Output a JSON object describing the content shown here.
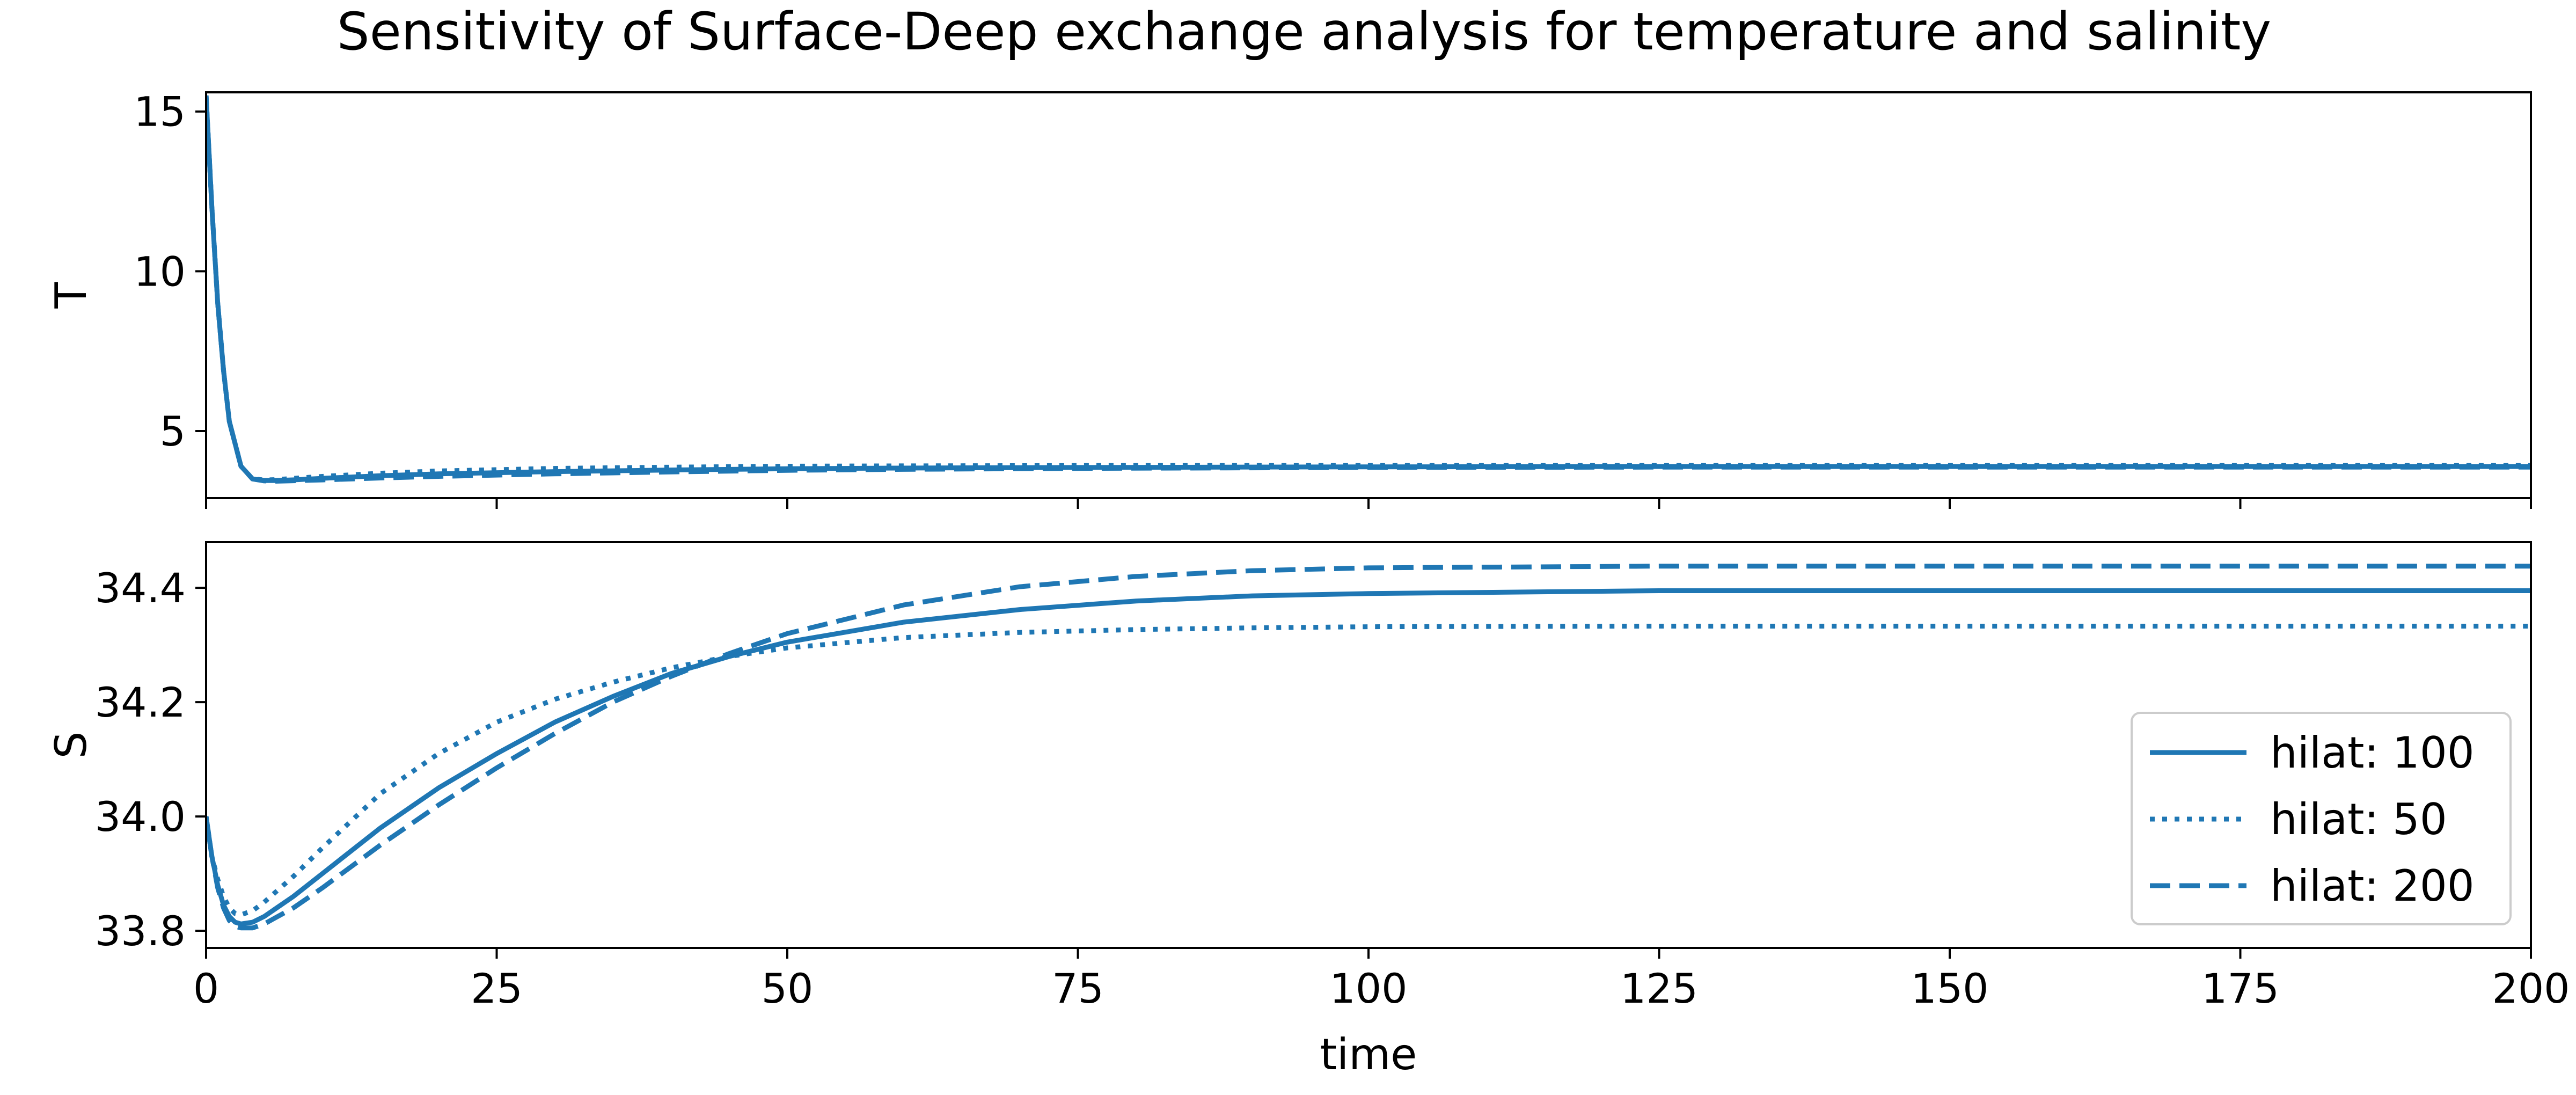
{
  "title": "Sensitivity of Surface-Deep exchange analysis for temperature and salinity",
  "colors": {
    "series": "#1f77b4",
    "axes": "#000000",
    "legend_border": "#cccccc"
  },
  "chart_data": [
    {
      "type": "line",
      "panel": "top",
      "title": "Sensitivity of Surface-Deep exchange analysis for temperature and salinity",
      "xlabel": "",
      "ylabel": "T",
      "xlim": [
        0,
        200
      ],
      "ylim": [
        2.9,
        15.6
      ],
      "yticks": [
        5,
        10,
        15
      ],
      "yticklabels": [
        "5",
        "10",
        "15"
      ],
      "xticks": [
        0,
        25,
        50,
        75,
        100,
        125,
        150,
        175,
        200
      ],
      "xticklabels": [],
      "grid": false,
      "series": [
        {
          "name": "hilat: 100",
          "style": "solid",
          "x": [
            0,
            0.5,
            1,
            1.5,
            2,
            3,
            4,
            5,
            6,
            8,
            10,
            15,
            20,
            30,
            40,
            50,
            60,
            75,
            100,
            125,
            150,
            175,
            200
          ],
          "y": [
            15.5,
            12.0,
            9.0,
            6.9,
            5.3,
            3.9,
            3.5,
            3.45,
            3.45,
            3.48,
            3.52,
            3.6,
            3.66,
            3.73,
            3.78,
            3.82,
            3.84,
            3.86,
            3.88,
            3.89,
            3.89,
            3.89,
            3.89
          ]
        },
        {
          "name": "hilat: 50",
          "style": "dotted",
          "x": [
            0,
            0.5,
            1,
            1.5,
            2,
            3,
            4,
            5,
            6,
            8,
            10,
            15,
            20,
            30,
            40,
            50,
            60,
            75,
            100,
            125,
            150,
            175,
            200
          ],
          "y": [
            15.5,
            12.0,
            9.0,
            6.9,
            5.3,
            3.9,
            3.5,
            3.47,
            3.48,
            3.53,
            3.58,
            3.68,
            3.75,
            3.83,
            3.87,
            3.9,
            3.91,
            3.92,
            3.92,
            3.92,
            3.92,
            3.92,
            3.92
          ]
        },
        {
          "name": "hilat: 200",
          "style": "dashed",
          "x": [
            0,
            0.5,
            1,
            1.5,
            2,
            3,
            4,
            5,
            6,
            8,
            10,
            15,
            20,
            30,
            40,
            50,
            60,
            75,
            100,
            125,
            150,
            175,
            200
          ],
          "y": [
            15.5,
            12.0,
            9.0,
            6.9,
            5.3,
            3.9,
            3.5,
            3.44,
            3.43,
            3.45,
            3.47,
            3.53,
            3.58,
            3.66,
            3.72,
            3.77,
            3.8,
            3.83,
            3.86,
            3.87,
            3.87,
            3.87,
            3.87
          ]
        }
      ]
    },
    {
      "type": "line",
      "panel": "bottom",
      "title": "",
      "xlabel": "time",
      "ylabel": "S",
      "xlim": [
        0,
        200
      ],
      "ylim": [
        33.77,
        34.48
      ],
      "yticks": [
        33.8,
        34.0,
        34.2,
        34.4
      ],
      "yticklabels": [
        "33.8",
        "34.0",
        "34.2",
        "34.4"
      ],
      "xticks": [
        0,
        25,
        50,
        75,
        100,
        125,
        150,
        175,
        200
      ],
      "xticklabels": [
        "0",
        "25",
        "50",
        "75",
        "100",
        "125",
        "150",
        "175",
        "200"
      ],
      "grid": false,
      "legend": {
        "position": "lower-right",
        "entries": [
          "hilat: 100",
          "hilat: 50",
          "hilat: 200"
        ]
      },
      "series": [
        {
          "name": "hilat: 100",
          "style": "solid",
          "x": [
            0,
            0.5,
            1,
            1.5,
            2,
            2.5,
            3,
            4,
            5,
            7.5,
            10,
            15,
            20,
            25,
            30,
            35,
            40,
            45,
            50,
            60,
            70,
            80,
            90,
            100,
            125,
            150,
            175,
            200
          ],
          "y": [
            34.0,
            33.93,
            33.88,
            33.845,
            33.825,
            33.815,
            33.812,
            33.815,
            33.825,
            33.86,
            33.9,
            33.98,
            34.05,
            34.11,
            34.165,
            34.21,
            34.25,
            34.28,
            34.305,
            34.34,
            34.362,
            34.377,
            34.386,
            34.39,
            34.395,
            34.395,
            34.395,
            34.395
          ]
        },
        {
          "name": "hilat: 50",
          "style": "dotted",
          "x": [
            0,
            0.5,
            1,
            1.5,
            2,
            2.5,
            3,
            4,
            5,
            7.5,
            10,
            15,
            20,
            25,
            30,
            35,
            40,
            45,
            50,
            60,
            70,
            80,
            90,
            100,
            125,
            150,
            175,
            200
          ],
          "y": [
            34.0,
            33.93,
            33.89,
            33.86,
            33.84,
            33.83,
            33.828,
            33.835,
            33.85,
            33.895,
            33.945,
            34.04,
            34.11,
            34.165,
            34.205,
            34.235,
            34.26,
            34.28,
            34.295,
            34.313,
            34.322,
            34.327,
            34.33,
            34.332,
            34.333,
            34.333,
            34.333,
            34.333
          ]
        },
        {
          "name": "hilat: 200",
          "style": "dashed",
          "x": [
            0,
            0.5,
            1,
            1.5,
            2,
            2.5,
            3,
            4,
            5,
            7.5,
            10,
            15,
            20,
            25,
            30,
            35,
            40,
            45,
            50,
            60,
            70,
            80,
            90,
            100,
            125,
            150,
            175,
            200
          ],
          "y": [
            34.0,
            33.93,
            33.875,
            33.84,
            33.818,
            33.808,
            33.805,
            33.805,
            33.812,
            33.84,
            33.875,
            33.95,
            34.02,
            34.085,
            34.145,
            34.2,
            34.245,
            34.285,
            34.32,
            34.37,
            34.402,
            34.42,
            34.43,
            34.435,
            34.438,
            34.438,
            34.438,
            34.438
          ]
        }
      ]
    }
  ]
}
